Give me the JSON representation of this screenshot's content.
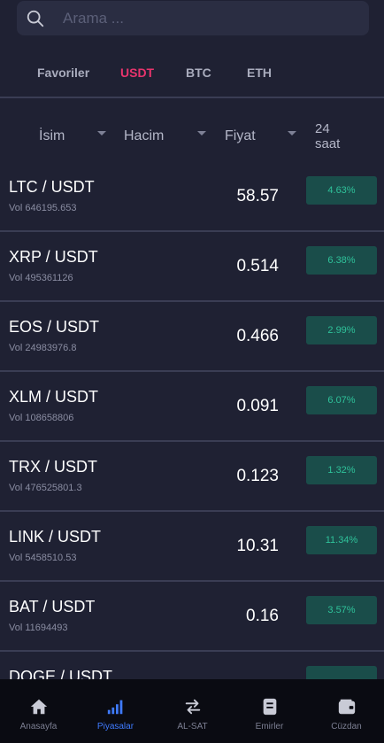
{
  "search": {
    "placeholder": "Arama ..."
  },
  "tabs": [
    {
      "label": "Favoriler",
      "active": false
    },
    {
      "label": "USDT",
      "active": true
    },
    {
      "label": "BTC",
      "active": false
    },
    {
      "label": "ETH",
      "active": false
    }
  ],
  "columns": {
    "name": "İsim",
    "volume": "Hacim",
    "price": "Fiyat",
    "change_line1": "24",
    "change_line2": "saat"
  },
  "rows": [
    {
      "pair": "LTC / USDT",
      "vol": "Vol 646195.653",
      "price": "58.57",
      "change": "4.63%"
    },
    {
      "pair": "XRP / USDT",
      "vol": "Vol 495361126",
      "price": "0.514",
      "change": "6.38%"
    },
    {
      "pair": "EOS / USDT",
      "vol": "Vol 24983976.8",
      "price": "0.466",
      "change": "2.99%"
    },
    {
      "pair": "XLM / USDT",
      "vol": "Vol 108658806",
      "price": "0.091",
      "change": "6.07%"
    },
    {
      "pair": "TRX / USDT",
      "vol": "Vol 476525801.3",
      "price": "0.123",
      "change": "1.32%"
    },
    {
      "pair": "LINK / USDT",
      "vol": "Vol 5458510.53",
      "price": "10.31",
      "change": "11.34%"
    },
    {
      "pair": "BAT / USDT",
      "vol": "Vol 11694493",
      "price": "0.16",
      "change": "3.57%"
    },
    {
      "pair": "DOGE / USDT",
      "vol": "",
      "price": "",
      "change": ""
    }
  ],
  "nav": [
    {
      "label": "Anasayfa",
      "icon": "home-icon",
      "active": false
    },
    {
      "label": "Piyasalar",
      "icon": "bar-chart-icon",
      "active": true
    },
    {
      "label": "AL-SAT",
      "icon": "swap-icon",
      "active": false
    },
    {
      "label": "Emirler",
      "icon": "orders-icon",
      "active": false
    },
    {
      "label": "Cüzdan",
      "icon": "wallet-icon",
      "active": false
    }
  ],
  "colors": {
    "accent": "#e8346d",
    "positive": "#2fc29a",
    "positive_bg": "#1a4d4a",
    "nav_active": "#3f7bff",
    "background": "#1f2133"
  }
}
